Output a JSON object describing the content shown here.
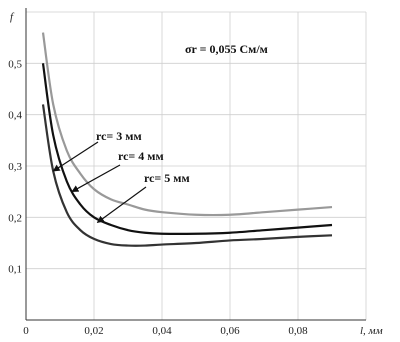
{
  "chart_data": {
    "type": "line",
    "title": "",
    "xlabel": "l, мм",
    "ylabel": "f",
    "xlim": [
      0,
      0.1
    ],
    "ylim": [
      0,
      0.6
    ],
    "x_ticks": [
      "0",
      "0,02",
      "0,04",
      "0,06",
      "0,08"
    ],
    "y_ticks": [
      "0,1",
      "0,2",
      "0,3",
      "0,4",
      "0,5"
    ],
    "grid": true,
    "annotation": "σr = 0,055 См/м",
    "series": [
      {
        "name": "rc = 3 мм",
        "color": "#999999",
        "x": [
          0.005,
          0.008,
          0.012,
          0.016,
          0.02,
          0.025,
          0.03,
          0.035,
          0.04,
          0.05,
          0.06,
          0.07,
          0.08,
          0.09
        ],
        "y": [
          0.56,
          0.42,
          0.33,
          0.285,
          0.255,
          0.235,
          0.225,
          0.215,
          0.21,
          0.205,
          0.205,
          0.21,
          0.215,
          0.22
        ]
      },
      {
        "name": "rc = 4 мм",
        "color": "#111111",
        "x": [
          0.005,
          0.008,
          0.012,
          0.016,
          0.02,
          0.025,
          0.03,
          0.035,
          0.04,
          0.05,
          0.06,
          0.07,
          0.08,
          0.09
        ],
        "y": [
          0.5,
          0.36,
          0.27,
          0.225,
          0.2,
          0.185,
          0.175,
          0.17,
          0.168,
          0.168,
          0.17,
          0.175,
          0.18,
          0.185
        ]
      },
      {
        "name": "rc = 5 мм",
        "color": "#333333",
        "x": [
          0.005,
          0.008,
          0.012,
          0.016,
          0.02,
          0.025,
          0.03,
          0.035,
          0.04,
          0.05,
          0.06,
          0.07,
          0.08,
          0.09
        ],
        "y": [
          0.42,
          0.29,
          0.21,
          0.175,
          0.158,
          0.148,
          0.145,
          0.145,
          0.147,
          0.15,
          0.155,
          0.158,
          0.162,
          0.165
        ]
      }
    ],
    "series_labels": [
      "rc= 3 мм",
      "rc= 4 мм",
      "rc= 5 мм"
    ]
  }
}
